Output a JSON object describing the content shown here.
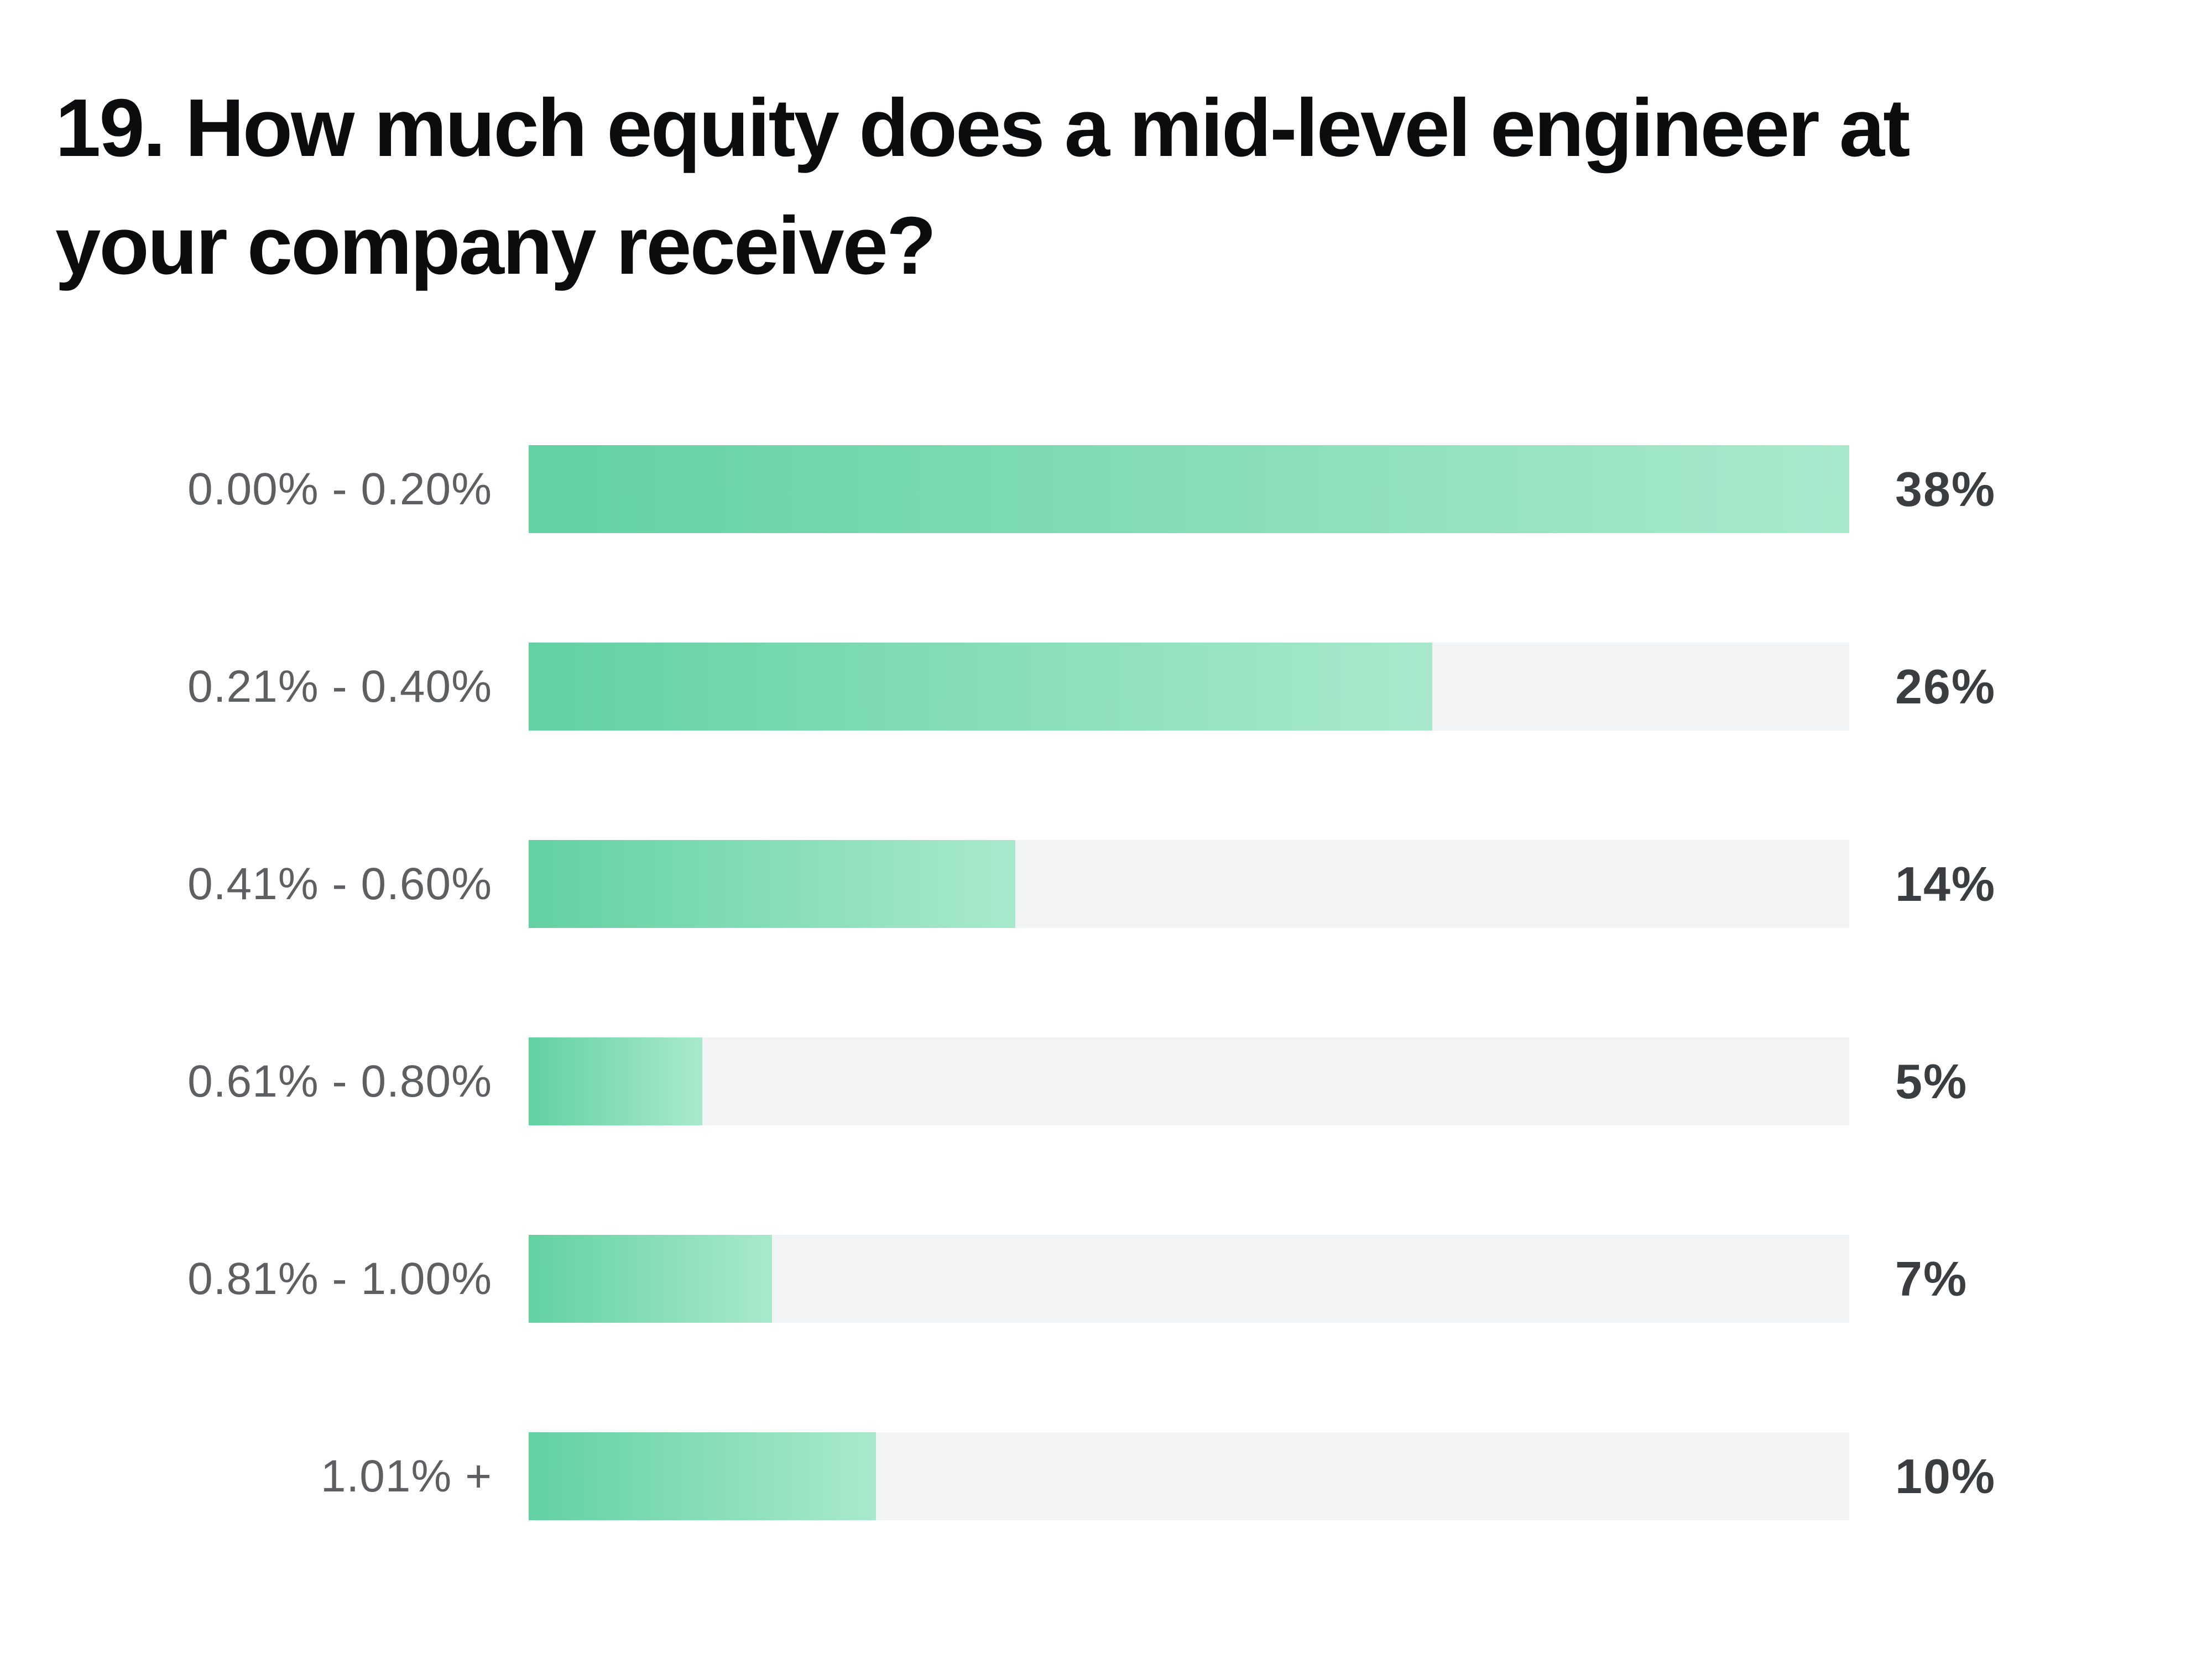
{
  "page": {
    "background": "#ffffff"
  },
  "title": {
    "text": "19. How much equity does a mid-level engineer at your company receive?"
  },
  "chart_data": {
    "type": "bar",
    "orientation": "horizontal",
    "title": "19. How much equity does a mid-level engineer at your company receive?",
    "categories": [
      "0.00% - 0.20%",
      "0.21% - 0.40%",
      "0.41% - 0.60%",
      "0.61% - 0.80%",
      "0.81% - 1.00%",
      "1.01% +"
    ],
    "values": [
      38,
      26,
      14,
      5,
      7,
      10
    ],
    "value_labels": [
      "38%",
      "26%",
      "14%",
      "5%",
      "7%",
      "10%"
    ],
    "value_unit": "%",
    "xlabel": "",
    "ylabel": "",
    "xlim": [
      0,
      38
    ],
    "bar_scale_max": 38,
    "grid": false,
    "legend_position": "none",
    "colors": {
      "bar_gradient_start": "#63d1a2",
      "bar_gradient_end": "#a8e9cc",
      "track": "#f2f3f4",
      "category_label": "#5d5f62",
      "value_label": "#3b3e40",
      "title": "#0b0c0d"
    }
  }
}
